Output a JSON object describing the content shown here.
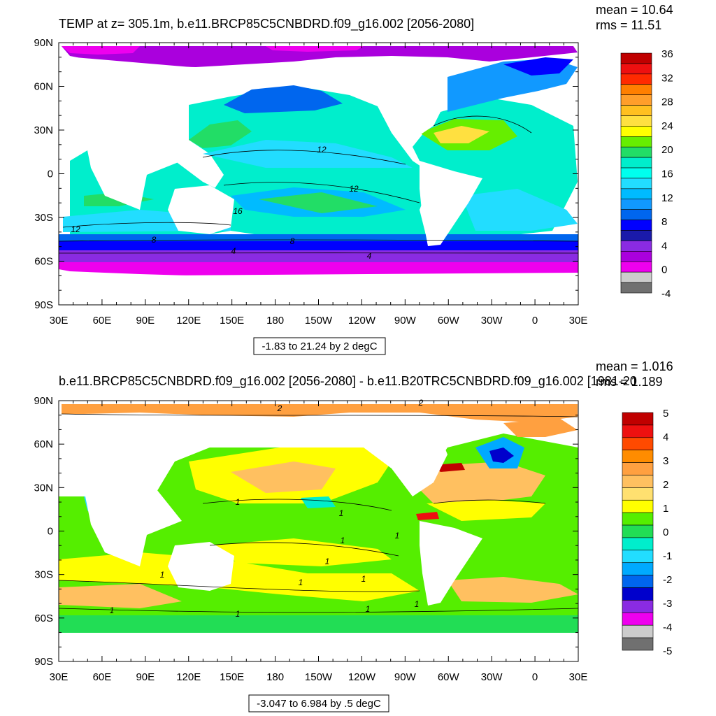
{
  "chart_data": [
    {
      "type": "heatmap",
      "title": "TEMP at z= 305.1m, b.e11.BRCP85C5CNBDRD.f09_g16.002 [2056-2080]",
      "stats": [
        "mean = 10.64",
        "rms = 11.51"
      ],
      "x_ticks": [
        "30E",
        "60E",
        "90E",
        "120E",
        "150E",
        "180",
        "150W",
        "120W",
        "90W",
        "60W",
        "30W",
        "0",
        "30E"
      ],
      "y_ticks": [
        "90N",
        "60N",
        "30N",
        "0",
        "30S",
        "60S",
        "90S"
      ],
      "xlim": [
        30,
        390
      ],
      "ylim": [
        -90,
        90
      ],
      "colorbar_labels": [
        "36",
        "32",
        "28",
        "24",
        "20",
        "16",
        "12",
        "8",
        "4",
        "0",
        "-4"
      ],
      "colors": [
        "#c00000",
        "#ee1010",
        "#ff2a00",
        "#ff7f00",
        "#ff9e2a",
        "#ffc020",
        "#ffe040",
        "#ffff00",
        "#66ee00",
        "#22dd66",
        "#00eecc",
        "#00ffee",
        "#22ddff",
        "#00bbff",
        "#1199ff",
        "#0066ee",
        "#0000ff",
        "#1a1aaa",
        "#8a2be2",
        "#aa00dd",
        "#ee00ee",
        "#cccccc",
        "#707070"
      ],
      "range_label": "-1.83 to 21.24 by 2 degC",
      "contour_labels": [
        "12",
        "12",
        "12",
        "16",
        "8",
        "8",
        "4",
        "4"
      ]
    },
    {
      "type": "heatmap",
      "title": "b.e11.BRCP85C5CNBDRD.f09_g16.002 [2056-2080] - b.e11.B20TRC5CNBDRD.f09_g16.002 [1981-20",
      "stats": [
        "mean = 1.016",
        "rms = 1.189"
      ],
      "x_ticks": [
        "30E",
        "60E",
        "90E",
        "120E",
        "150E",
        "180",
        "150W",
        "120W",
        "90W",
        "60W",
        "30W",
        "0",
        "30E"
      ],
      "y_ticks": [
        "90N",
        "60N",
        "30N",
        "0",
        "30S",
        "60S",
        "90S"
      ],
      "xlim": [
        30,
        390
      ],
      "ylim": [
        -90,
        90
      ],
      "colorbar_labels": [
        "5",
        "4",
        "3",
        "2",
        "1",
        "0",
        "-1",
        "-2",
        "-3",
        "-4",
        "-5"
      ],
      "colors": [
        "#c00000",
        "#ee1010",
        "#ff4a00",
        "#ff8c00",
        "#ffa040",
        "#ffc060",
        "#ffe070",
        "#ffff00",
        "#55ee00",
        "#22dd55",
        "#00eecc",
        "#22ddff",
        "#00aaff",
        "#0066ee",
        "#0000cc",
        "#8a2be2",
        "#ee00ee",
        "#cccccc",
        "#707070"
      ],
      "range_label": "-3.047 to 6.984 by .5 degC",
      "contour_labels": [
        "2",
        "2",
        "1",
        "1",
        "1",
        "1",
        "1",
        "1",
        "1",
        "1",
        "1",
        "1",
        "1",
        "1"
      ]
    }
  ]
}
